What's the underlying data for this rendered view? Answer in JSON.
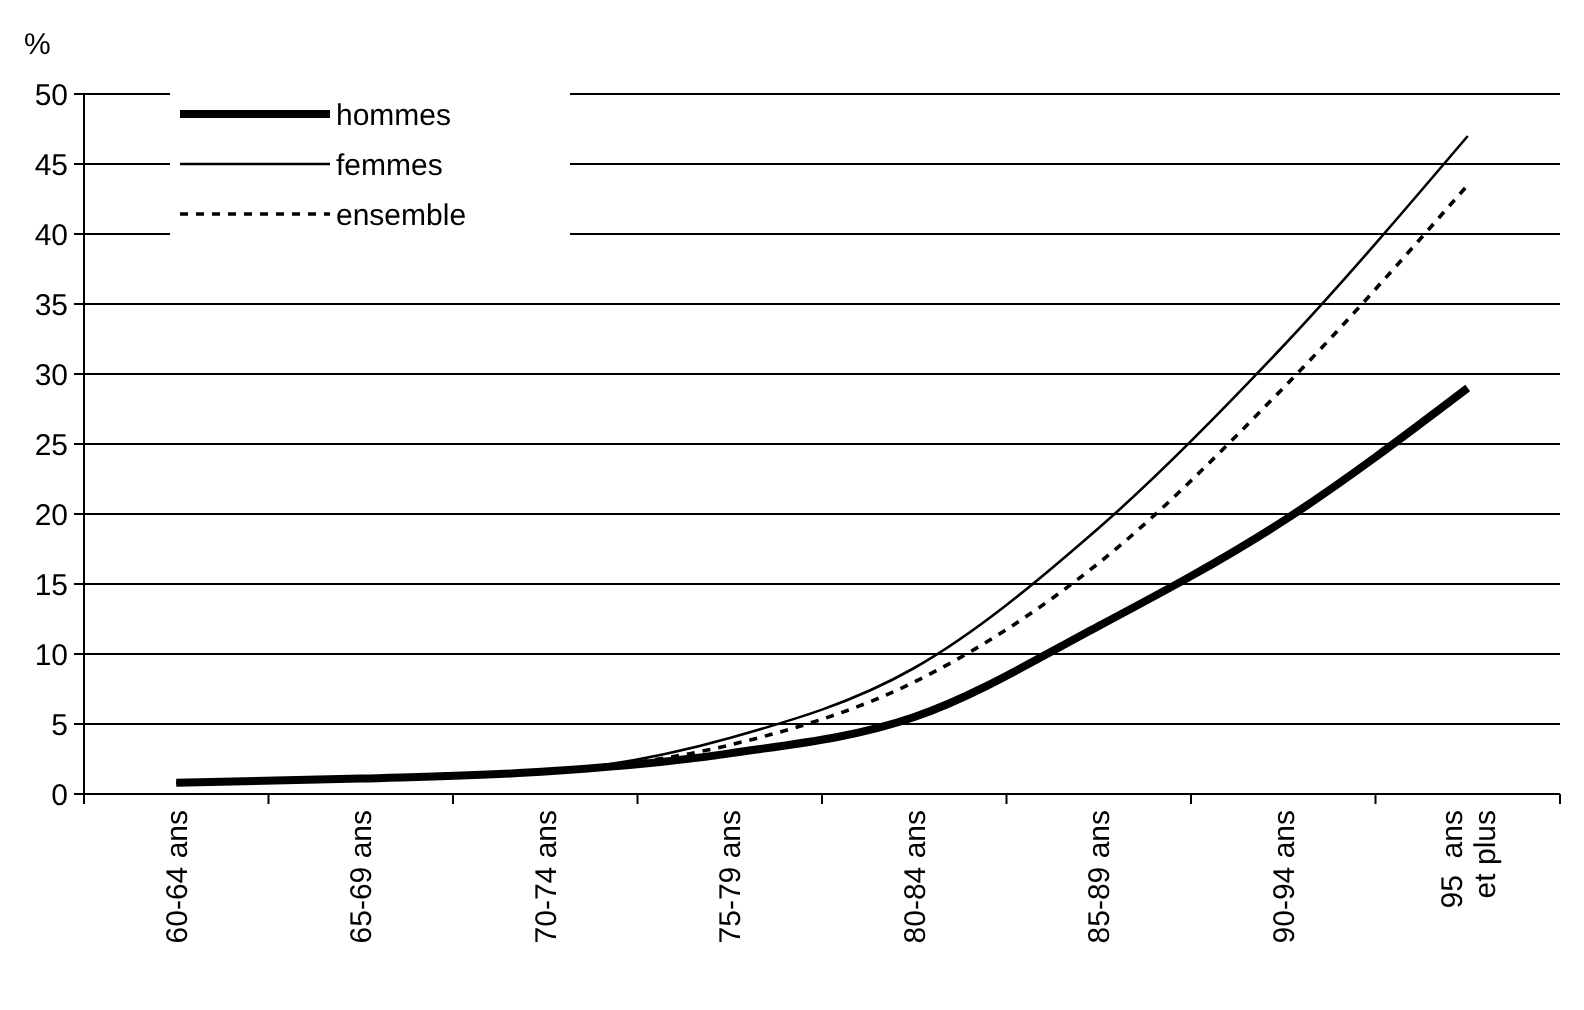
{
  "chart_data": {
    "type": "line",
    "ylabel": "%",
    "categories": [
      "60-64 ans",
      "65-69 ans",
      "70-74 ans",
      "75-79 ans",
      "80-84 ans",
      "85-89 ans",
      "90-94 ans",
      "95  ans\net plus"
    ],
    "series": [
      {
        "name": "hommes",
        "color": "#000000",
        "line_style": "solid",
        "values": [
          0.8,
          1.1,
          1.6,
          2.9,
          5.5,
          12,
          19.5,
          29
        ]
      },
      {
        "name": "femmes",
        "color": "#000000",
        "line_style": "solid",
        "values": [
          0.8,
          1.1,
          1.6,
          4,
          9,
          19,
          32,
          47
        ]
      },
      {
        "name": "ensemble",
        "color": "#000000",
        "line_style": "dotted",
        "values": [
          0.8,
          1.1,
          1.6,
          3.5,
          8,
          16.5,
          29,
          43.5
        ]
      }
    ],
    "ylim": [
      0,
      50
    ],
    "yticks": [
      0,
      5,
      10,
      15,
      20,
      25,
      30,
      35,
      40,
      45,
      50
    ],
    "grid": "y",
    "legend": "top left",
    "marker": "none"
  }
}
